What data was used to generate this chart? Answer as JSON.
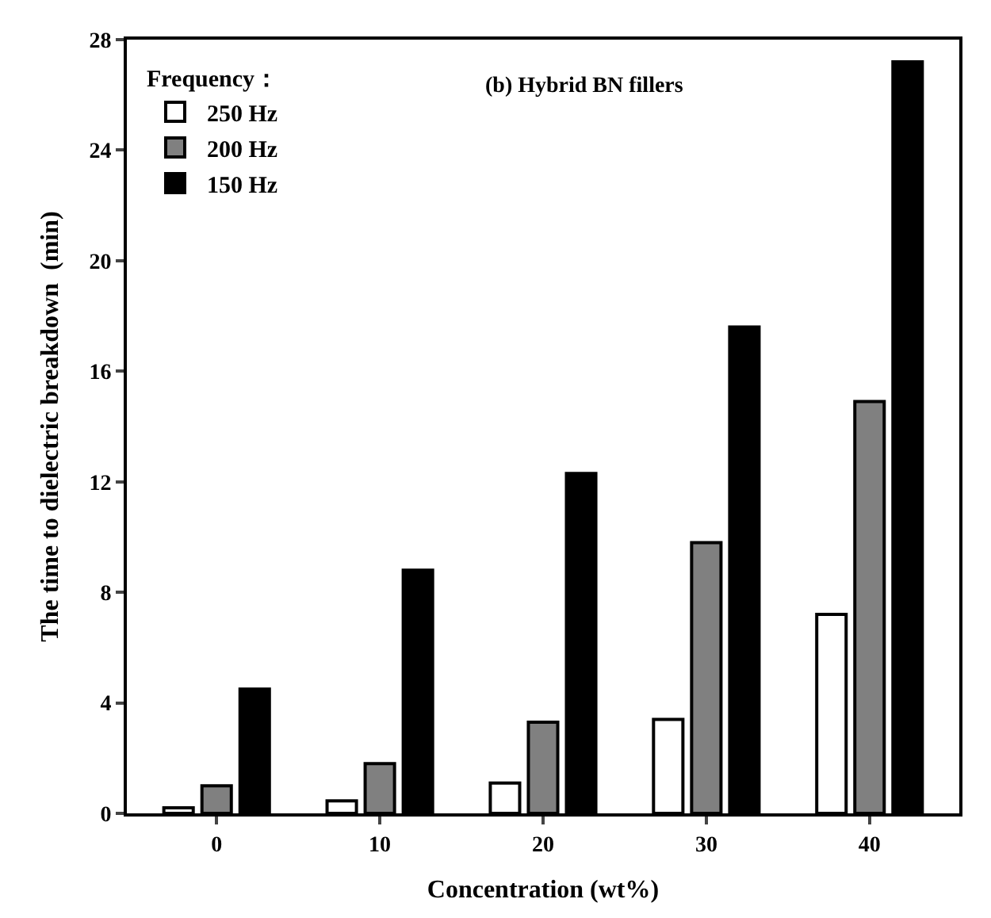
{
  "chart_data": {
    "type": "bar",
    "title": "(b) Hybrid BN fillers",
    "xlabel": "Concentration (wt%)",
    "ylabel": "The time to dielectric breakdown  (min)",
    "legend_title": "Frequency：",
    "categories": [
      "0",
      "10",
      "20",
      "30",
      "40"
    ],
    "series": [
      {
        "name": "250 Hz",
        "color": "#ffffff",
        "values": [
          0.2,
          0.45,
          1.1,
          3.4,
          7.2
        ]
      },
      {
        "name": "200 Hz",
        "color": "#808080",
        "values": [
          1.0,
          1.8,
          3.3,
          9.8,
          14.9
        ]
      },
      {
        "name": "150 Hz",
        "color": "#000000",
        "values": [
          4.5,
          8.8,
          12.3,
          17.6,
          27.2
        ]
      }
    ],
    "ylim": [
      0,
      28
    ],
    "yticks": [
      0,
      4,
      8,
      12,
      16,
      20,
      24,
      28
    ],
    "legend": "top left"
  }
}
